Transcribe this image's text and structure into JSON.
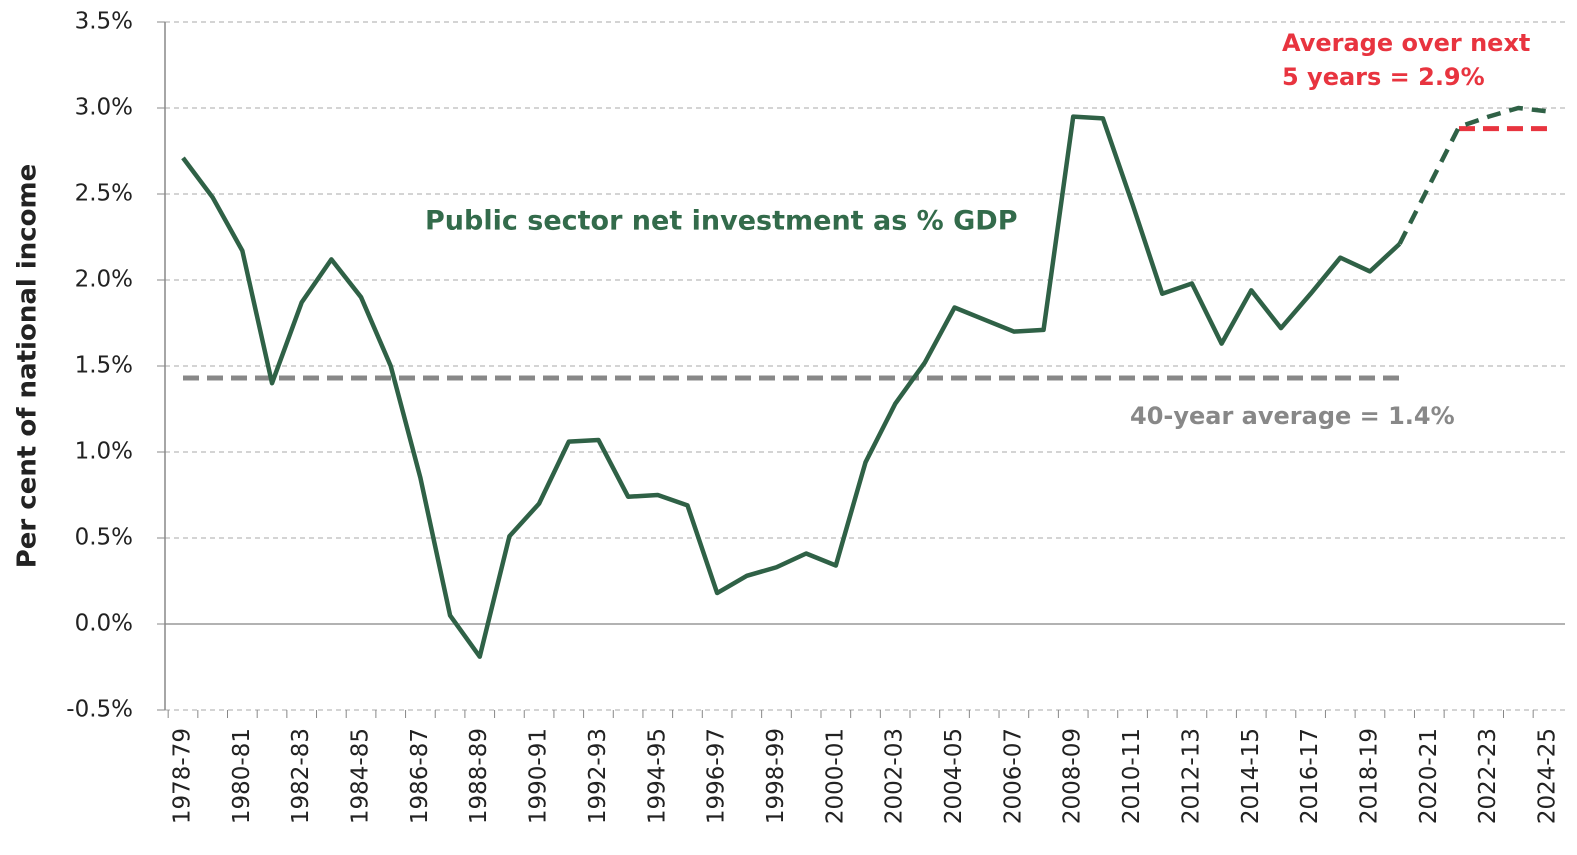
{
  "chart_data": {
    "type": "line",
    "y_label": "Per cent of national income",
    "categories": [
      "1978-79",
      null,
      "1980-81",
      null,
      "1982-83",
      null,
      "1984-85",
      null,
      "1986-87",
      null,
      "1988-89",
      null,
      "1990-91",
      null,
      "1992-93",
      null,
      "1994-95",
      null,
      "1996-97",
      null,
      "1998-99",
      null,
      "2000-01",
      null,
      "2002-03",
      null,
      "2004-05",
      null,
      "2006-07",
      null,
      "2008-09",
      null,
      "2010-11",
      null,
      "2012-13",
      null,
      "2014-15",
      null,
      "2016-17",
      null,
      "2018-19",
      null,
      "2020-21",
      null,
      "2022-23",
      null,
      "2024-25"
    ],
    "series": [
      {
        "color": "#2f6146",
        "dash": false,
        "values": [
          2.71,
          2.48,
          2.17,
          1.4,
          1.87,
          2.12,
          1.9,
          1.5,
          0.85,
          0.05,
          -0.19,
          0.51,
          0.7,
          1.06,
          1.07,
          0.74,
          0.75,
          0.69,
          0.18,
          0.28,
          0.33,
          0.41,
          0.34,
          0.94,
          1.28,
          1.52,
          1.84,
          1.77,
          1.7,
          1.71,
          2.95,
          2.94,
          2.44,
          1.92,
          1.98,
          1.63,
          1.94,
          1.72,
          1.92,
          2.13,
          2.05,
          2.21,
          null,
          null,
          null,
          null,
          null
        ]
      },
      {
        "color": "#2f6146",
        "dash": true,
        "values": [
          null,
          null,
          null,
          null,
          null,
          null,
          null,
          null,
          null,
          null,
          null,
          null,
          null,
          null,
          null,
          null,
          null,
          null,
          null,
          null,
          null,
          null,
          null,
          null,
          null,
          null,
          null,
          null,
          null,
          null,
          null,
          null,
          null,
          null,
          null,
          null,
          null,
          null,
          null,
          null,
          null,
          2.21,
          2.55,
          2.89,
          2.95,
          3.0,
          2.98
        ]
      }
    ],
    "annotation": "Public sector net investment as % GDP",
    "reference_lines": [
      {
        "value": 1.43,
        "x_range": [
          0,
          41
        ],
        "color": "#888888",
        "label": [
          "40-year average  = 1.4%"
        ]
      },
      {
        "value": 2.88,
        "x_range": [
          43,
          46
        ],
        "color": "#e8343f",
        "label": [
          "Average over next",
          "5 years = 2.9%"
        ]
      }
    ],
    "ylim": [
      -0.5,
      3.5
    ],
    "yticks": [
      {
        "value": -0.5,
        "label": "-0.5%"
      },
      {
        "value": 0,
        "label": "0.0%"
      },
      {
        "value": 0.5,
        "label": "0.5%"
      },
      {
        "value": 1,
        "label": "1.0%"
      },
      {
        "value": 1.5,
        "label": "1.5%"
      },
      {
        "value": 2,
        "label": "2.0%"
      },
      {
        "value": 2.5,
        "label": "2.5%"
      },
      {
        "value": 3,
        "label": "3.0%"
      },
      {
        "value": 3.5,
        "label": "3.5%"
      }
    ],
    "grid": true
  }
}
